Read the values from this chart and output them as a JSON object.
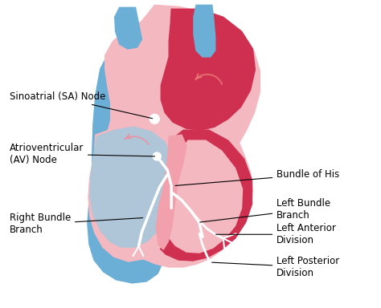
{
  "bg_color": "#ffffff",
  "figsize": [
    4.74,
    3.84
  ],
  "dpi": 100,
  "labels": {
    "sinoatrial": "Sinoatrial (SA) Node",
    "av_node": "Atrioventricular\n(AV) Node",
    "right_bundle": "Right Bundle\nBranch",
    "bundle_his": "Bundle of His",
    "left_bundle": "Left Bundle\nBranch",
    "left_anterior": "Left Anterior\nDivision",
    "left_posterior": "Left Posterior\nDivision"
  },
  "colors": {
    "pink_light": "#F4B8C0",
    "pink_medium": "#EF8FA0",
    "red_dark": "#D03050",
    "blue_medium": "#6BAED6",
    "blue_pale": "#AEC6D8",
    "pink_wall": "#F2A0AB",
    "white": "#ffffff",
    "black": "#000000"
  }
}
